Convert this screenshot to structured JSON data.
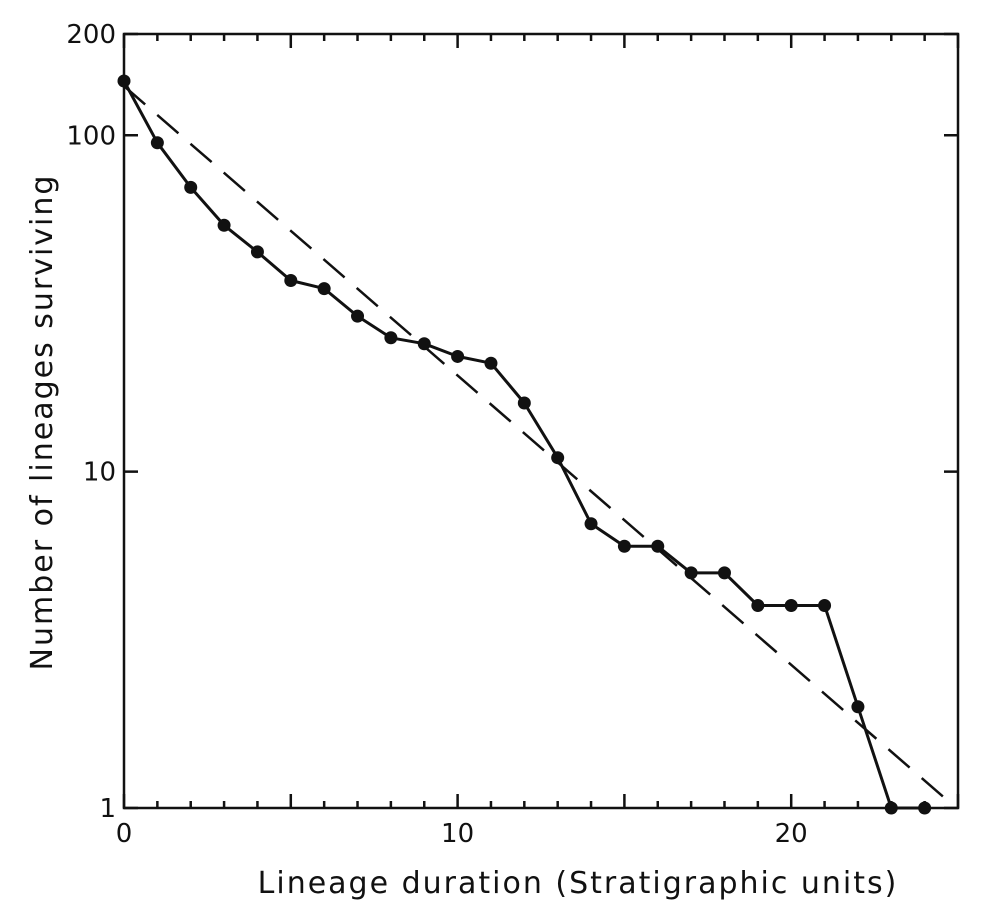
{
  "chart_data": {
    "type": "line",
    "title": "",
    "xlabel": "Lineage duration  (Stratigraphic units)",
    "ylabel": "Number of lineages surviving",
    "xlim": [
      0,
      25
    ],
    "ylim": [
      1,
      200
    ],
    "yscale": "log",
    "x_ticks": [
      0,
      10,
      20
    ],
    "x_tick_labels": [
      "0",
      "10",
      "20"
    ],
    "y_ticks": [
      1,
      10,
      100,
      200
    ],
    "y_tick_labels": [
      "1",
      "10",
      "100",
      "200"
    ],
    "grid": false,
    "legend": "none",
    "series": [
      {
        "style": "solid-with-markers",
        "x": [
          0,
          1,
          2,
          3,
          4,
          5,
          6,
          7,
          8,
          9,
          10,
          11,
          12,
          13,
          14,
          15,
          16,
          17,
          18,
          19,
          20,
          21,
          22,
          23,
          24
        ],
        "y": [
          145,
          95,
          70,
          54,
          45,
          37,
          35,
          29,
          25,
          24,
          22,
          21,
          16,
          11,
          7,
          6,
          6,
          5,
          5,
          4,
          4,
          4,
          2,
          1,
          1
        ]
      },
      {
        "style": "dashed",
        "x": [
          0,
          24.7
        ],
        "y": [
          140,
          1.05
        ]
      }
    ]
  }
}
